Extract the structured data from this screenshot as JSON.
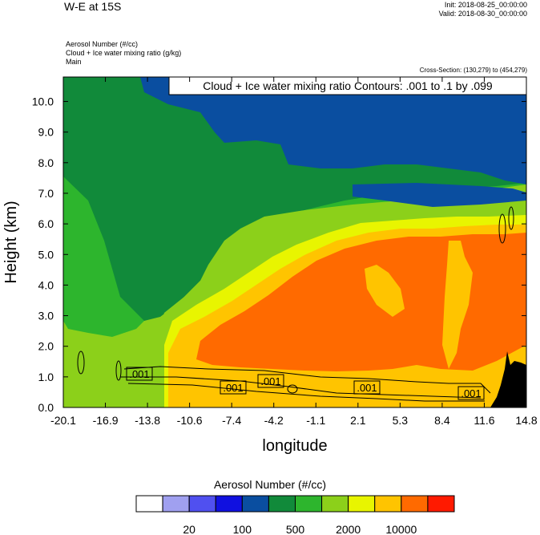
{
  "header": {
    "title": "W-E at 15S",
    "init": "Init: 2018-08-25_00:00:00",
    "valid": "Valid: 2018-08-30_00:00:00",
    "var1": "Aerosol Number   (#/cc)",
    "var2": "Cloud + Ice water mixing ratio   (g/kg)",
    "var3": "Main",
    "cross_section": "Cross-Section: (130,279) to (454,279)"
  },
  "chart_data": {
    "type": "heatmap",
    "contour_title": "Cloud + Ice water mixing ratio Contours: .001 to .1 by .099",
    "contour_labels": [
      ".001",
      ".001",
      ".001",
      ".001",
      ".001"
    ],
    "xlabel": "longitude",
    "ylabel": "Height (km)",
    "x_ticks": [
      "-20.1",
      "-16.9",
      "-13.8",
      "-10.6",
      "-7.4",
      "-4.2",
      "-1.1",
      "2.1",
      "5.3",
      "8.4",
      "11.6",
      "14.8"
    ],
    "y_ticks": [
      "0.0",
      "1.0",
      "2.0",
      "3.0",
      "4.0",
      "5.0",
      "6.0",
      "7.0",
      "8.0",
      "9.0",
      "10.0"
    ],
    "xlim": [
      -20.1,
      14.8
    ],
    "ylim": [
      0,
      10.8
    ],
    "colorbar": {
      "title": "Aerosol Number  (#/cc)",
      "colors": [
        "#ffffff",
        "#a0a0f0",
        "#5050f0",
        "#1010e0",
        "#0a4ea0",
        "#118a3a",
        "#2db52d",
        "#8cd01a",
        "#e8f500",
        "#ffc400",
        "#ff6a00",
        "#ff1a00"
      ],
      "labels": [
        "20",
        "100",
        "500",
        "2000",
        "10000"
      ]
    },
    "terrain_color": "#000000"
  }
}
